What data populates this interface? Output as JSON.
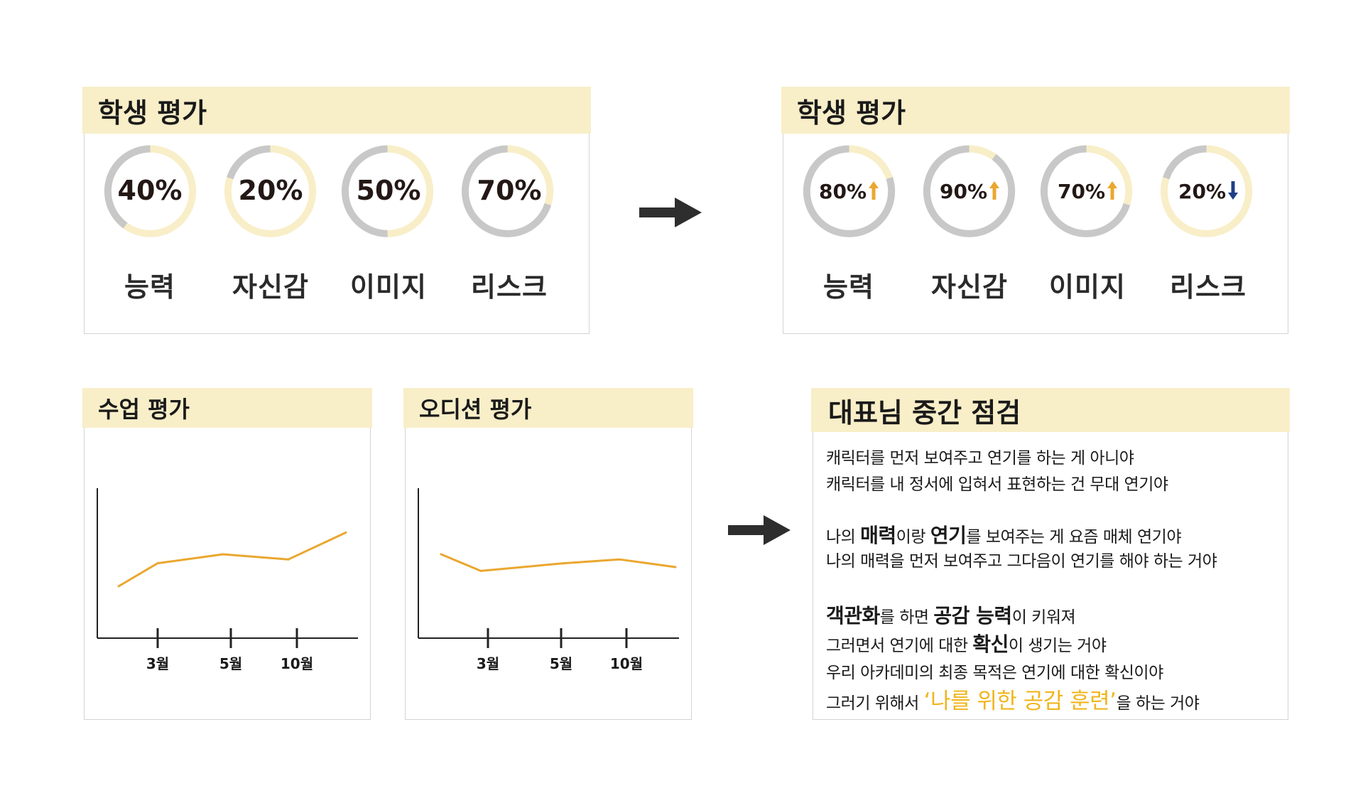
{
  "colors": {
    "header_bg": "#f8eec8",
    "ring_gray": "#c8c8c8",
    "ring_cream": "#f8eec8",
    "line_orange": "#eaa72f",
    "up_arrow": "#eaa72f",
    "down_arrow": "#1f3f86",
    "highlight": "#f0b51c",
    "arrow_dark": "#2e2e2e"
  },
  "before": {
    "title": "학생 평가",
    "items": [
      {
        "percent": "40%",
        "value": 40,
        "label": "능력"
      },
      {
        "percent": "20%",
        "value": 20,
        "label": "자신감"
      },
      {
        "percent": "50%",
        "value": 50,
        "label": "이미지"
      },
      {
        "percent": "70%",
        "value": 70,
        "label": "리스크"
      }
    ]
  },
  "after": {
    "title": "학생 평가",
    "items": [
      {
        "percent": "80%",
        "value": 80,
        "label": "능력",
        "trend": "up",
        "trend_icon": "arrow-up-icon"
      },
      {
        "percent": "90%",
        "value": 90,
        "label": "자신감",
        "trend": "up",
        "trend_icon": "arrow-up-icon"
      },
      {
        "percent": "70%",
        "value": 70,
        "label": "이미지",
        "trend": "up",
        "trend_icon": "arrow-up-icon"
      },
      {
        "percent": "20%",
        "value": 20,
        "label": "리스크",
        "trend": "down",
        "trend_icon": "arrow-down-icon"
      }
    ]
  },
  "chart_data": [
    {
      "type": "line",
      "title": "수업 평가",
      "x_tick_labels": [
        "3월",
        "5월",
        "10월"
      ],
      "series": [
        {
          "values": [
            30,
            48,
            55,
            51,
            72
          ]
        }
      ],
      "grid": false,
      "ylim": [
        0,
        100
      ]
    },
    {
      "type": "line",
      "title": "오디션 평가",
      "x_tick_labels": [
        "3월",
        "5월",
        "10월"
      ],
      "series": [
        {
          "values": [
            55,
            42,
            48,
            51,
            45
          ]
        }
      ],
      "grid": false,
      "ylim": [
        0,
        100
      ]
    }
  ],
  "note": {
    "title": "대표님 중간 점검",
    "paragraphs": [
      [
        [
          {
            "t": "캐릭터를 먼저 보여주고 연기를 하는 게 아니야"
          }
        ],
        [
          {
            "t": "캐릭터를 내 정서에 입혀서 표현하는 건 무대 연기야"
          }
        ]
      ],
      [
        [
          {
            "t": "나의 "
          },
          {
            "t": "매력",
            "b": true
          },
          {
            "t": "이랑 "
          },
          {
            "t": "연기",
            "b": true
          },
          {
            "t": "를 보여주는 게 요즘 매체 연기야"
          }
        ],
        [
          {
            "t": "나의 매력을 먼저 보여주고 그다음이 연기를 해야 하는 거야"
          }
        ]
      ],
      [
        [
          {
            "t": "객관화",
            "b": true
          },
          {
            "t": "를 하면 "
          },
          {
            "t": "공감 능력",
            "b": true
          },
          {
            "t": "이 키워져"
          }
        ],
        [
          {
            "t": "그러면서 연기에 대한 "
          },
          {
            "t": "확신",
            "b": true
          },
          {
            "t": "이 생기는 거야"
          }
        ],
        [
          {
            "t": "우리 아카데미의 최종 목적은 연기에 대한 확신이야"
          }
        ],
        [
          {
            "t": "그러기 위해서 "
          },
          {
            "t": "‘나를 위한 공감 훈련’",
            "h": true
          },
          {
            "t": "을 하는 거야"
          }
        ]
      ]
    ]
  },
  "arrows": [
    {
      "icon": "right-arrow-icon"
    },
    {
      "icon": "right-arrow-icon"
    }
  ]
}
